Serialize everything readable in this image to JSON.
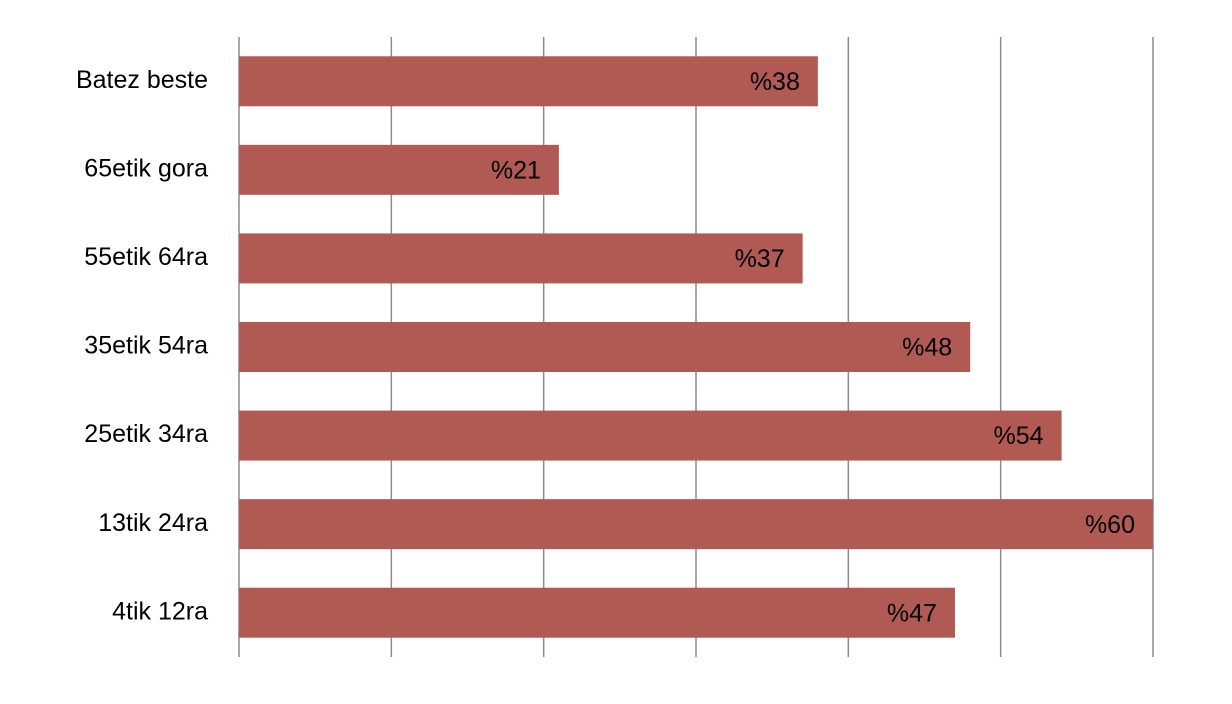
{
  "chart_data": {
    "type": "bar",
    "orientation": "horizontal",
    "categories": [
      "Batez beste",
      "65etik gora",
      "55etik 64ra",
      "35etik 54ra",
      "25etik 34ra",
      "13tik 24ra",
      "4tik 12ra"
    ],
    "values": [
      38,
      21,
      37,
      48,
      54,
      60,
      47
    ],
    "value_labels": [
      "%38",
      "%21",
      "%37",
      "%48",
      "%54",
      "%60",
      "%47"
    ],
    "color": "#b15a54",
    "xlim": [
      0,
      60
    ],
    "xticks": [
      0,
      10,
      20,
      30,
      40,
      50,
      60
    ],
    "grid": true
  }
}
